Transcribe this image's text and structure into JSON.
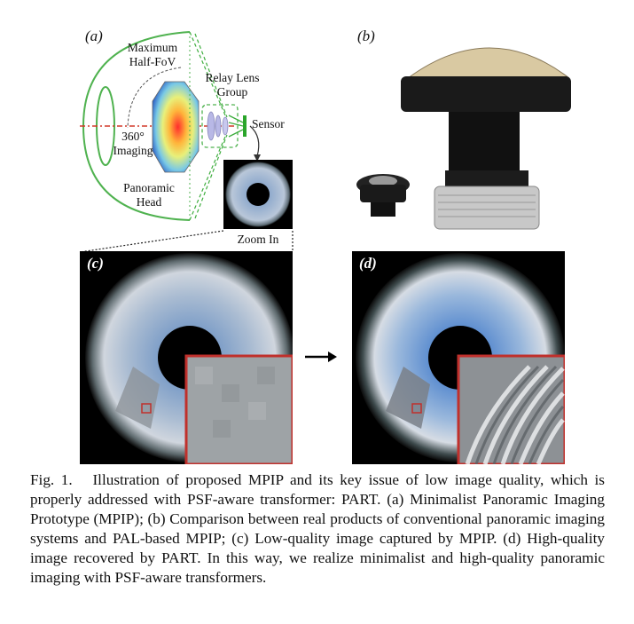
{
  "panels": {
    "a": "(a)",
    "b": "(b)",
    "c": "(c)",
    "d": "(d)"
  },
  "diagram": {
    "max_fov": "Maximum\nHalf-FoV",
    "relay": "Relay Lens\nGroup",
    "sensor": "Sensor",
    "imaging": "360°\nImaging",
    "head": "Panoramic\nHead",
    "zoom": "Zoom In"
  },
  "caption": {
    "fig_label": "Fig. 1.",
    "text": "Illustration of proposed MPIP and its key issue of low image quality, which is properly addressed with PSF-aware transformer: PART. (a) Minimalist Panoramic Imaging Prototype (MPIP); (b) Comparison between real products of conventional panoramic imaging systems and PAL-based MPIP; (c) Low-quality image captured by MPIP. (d) High-quality image recovered by PART. In this way, we realize minimalist and high-quality panoramic imaging with PSF-aware transformers."
  },
  "colors": {
    "ray_green": "#3fae3f",
    "zoom_box": "#c0302c",
    "optical_axis": "#d23a2a"
  }
}
